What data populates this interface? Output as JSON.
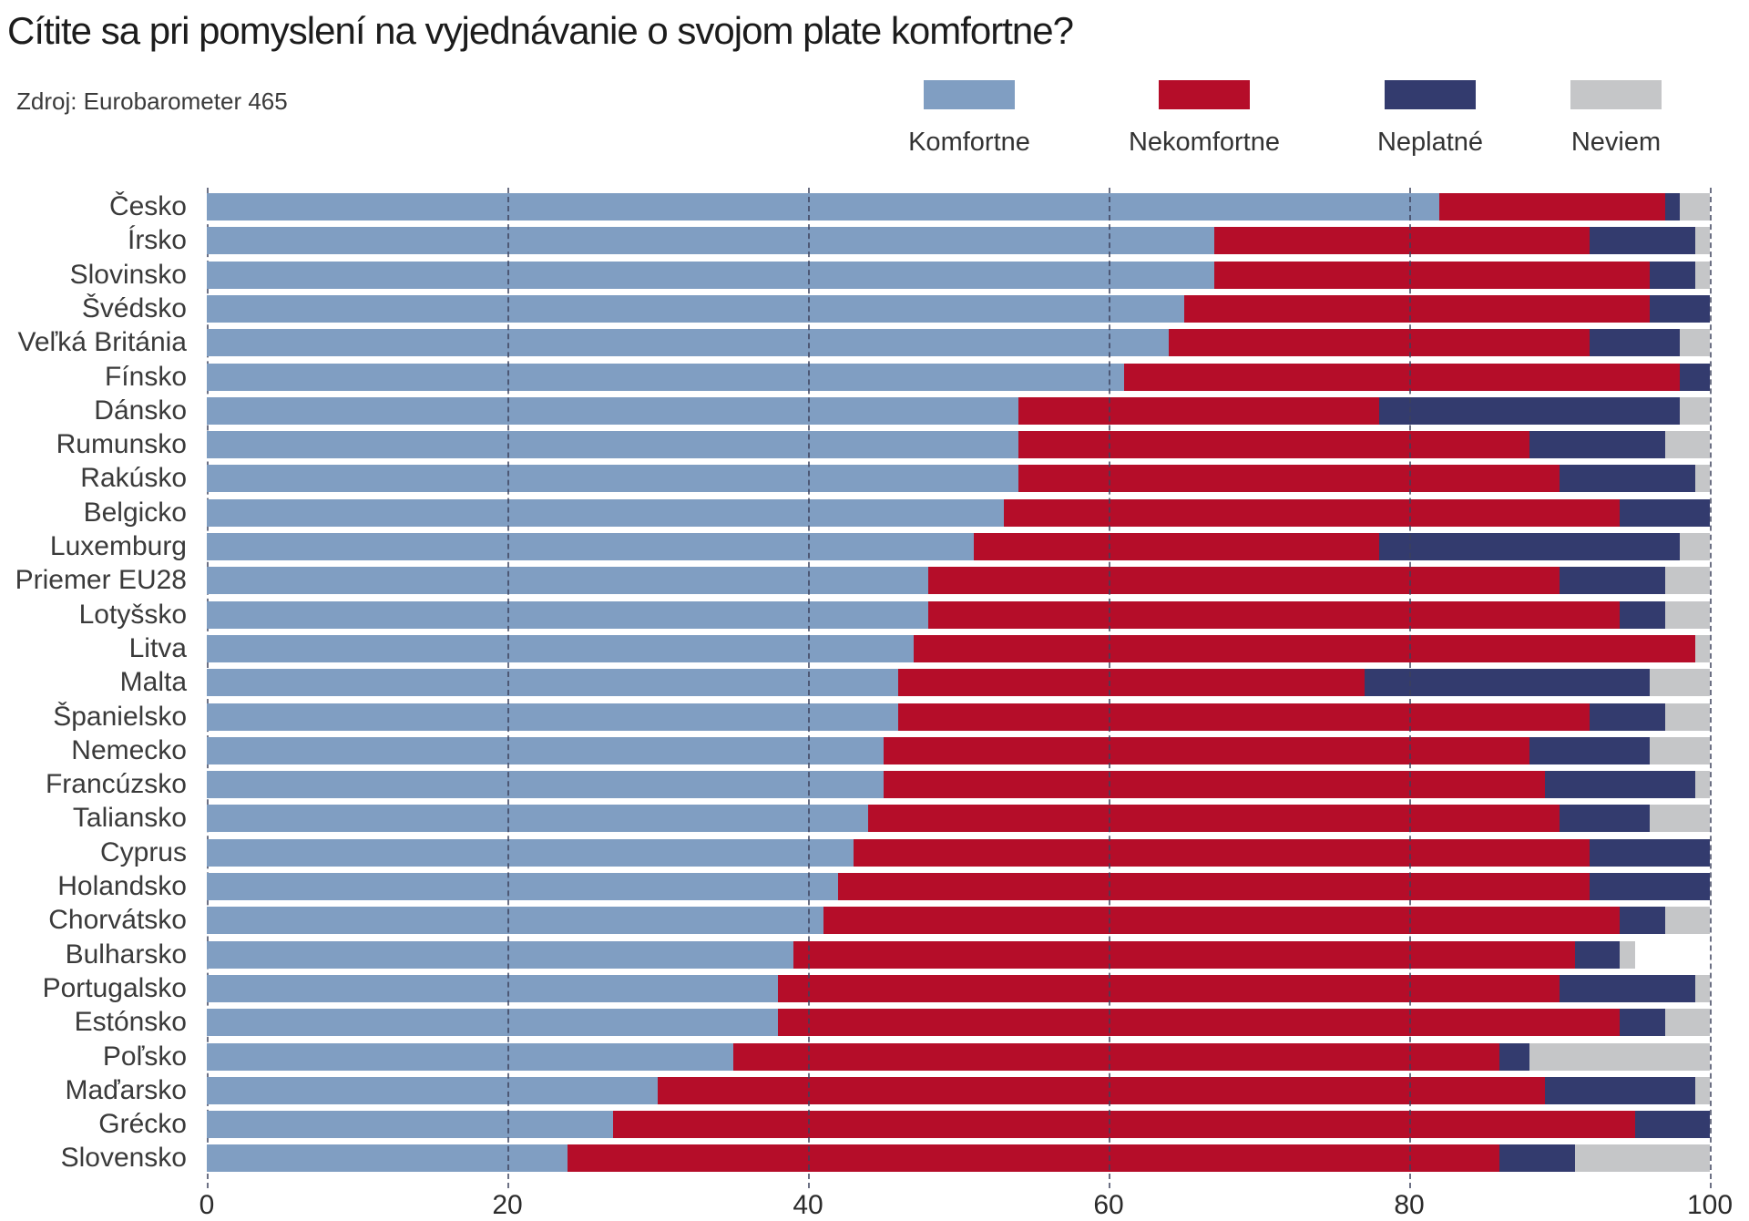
{
  "header": {
    "title": "Cítite sa pri pomyslení na vyjednávanie o svojom plate komfortne?",
    "source": "Zdroj: Eurobarometer 465"
  },
  "legend": [
    {
      "label": "Komfortne",
      "color": "#809EC2"
    },
    {
      "label": "Nekomfortne",
      "color": "#B50D29"
    },
    {
      "label": "Neplatné",
      "color": "#333B6E"
    },
    {
      "label": "Neviem",
      "color": "#C5C6C8"
    }
  ],
  "chart_data": {
    "type": "bar",
    "orientation": "horizontal-stacked",
    "title": "Cítite sa pri pomyslení na vyjednávanie o svojom plate komfortne?",
    "source": "Zdroj: Eurobarometer 465",
    "xlabel": "",
    "ylabel": "",
    "xlim": [
      0,
      100
    ],
    "x_ticks": [
      0,
      20,
      40,
      60,
      80,
      100
    ],
    "grid": "dashed-vertical",
    "legend_position": "top-right",
    "categories": [
      "Česko",
      "Írsko",
      "Slovinsko",
      "Švédsko",
      "Veľká Británia",
      "Fínsko",
      "Dánsko",
      "Rumunsko",
      "Rakúsko",
      "Belgicko",
      "Luxemburg",
      "Priemer EU28",
      "Lotyšsko",
      "Litva",
      "Malta",
      "Španielsko",
      "Nemecko",
      "Francúzsko",
      "Taliansko",
      "Cyprus",
      "Holandsko",
      "Chorvátsko",
      "Bulharsko",
      "Portugalsko",
      "Estónsko",
      "Poľsko",
      "Maďarsko",
      "Grécko",
      "Slovensko"
    ],
    "series": [
      {
        "name": "Komfortne",
        "color": "#809EC2",
        "values": [
          82,
          67,
          67,
          65,
          64,
          61,
          54,
          54,
          54,
          53,
          51,
          48,
          48,
          47,
          46,
          46,
          45,
          45,
          44,
          43,
          42,
          41,
          39,
          38,
          38,
          35,
          30,
          27,
          24
        ]
      },
      {
        "name": "Nekomfortne",
        "color": "#B50D29",
        "values": [
          15,
          25,
          29,
          31,
          28,
          37,
          24,
          34,
          36,
          41,
          27,
          42,
          46,
          52,
          31,
          46,
          43,
          44,
          46,
          49,
          50,
          53,
          52,
          52,
          56,
          51,
          59,
          68,
          62
        ]
      },
      {
        "name": "Neplatné",
        "color": "#333B6E",
        "values": [
          1,
          7,
          3,
          4,
          6,
          2,
          20,
          9,
          9,
          6,
          20,
          7,
          3,
          0,
          19,
          5,
          8,
          10,
          6,
          8,
          8,
          3,
          3,
          9,
          3,
          2,
          10,
          5,
          5
        ]
      },
      {
        "name": "Neviem",
        "color": "#C5C6C8",
        "values": [
          2,
          1,
          1,
          0,
          2,
          0,
          2,
          3,
          1,
          0,
          2,
          3,
          3,
          1,
          4,
          3,
          4,
          1,
          4,
          0,
          0,
          3,
          1,
          1,
          3,
          12,
          1,
          0,
          9
        ]
      }
    ]
  }
}
